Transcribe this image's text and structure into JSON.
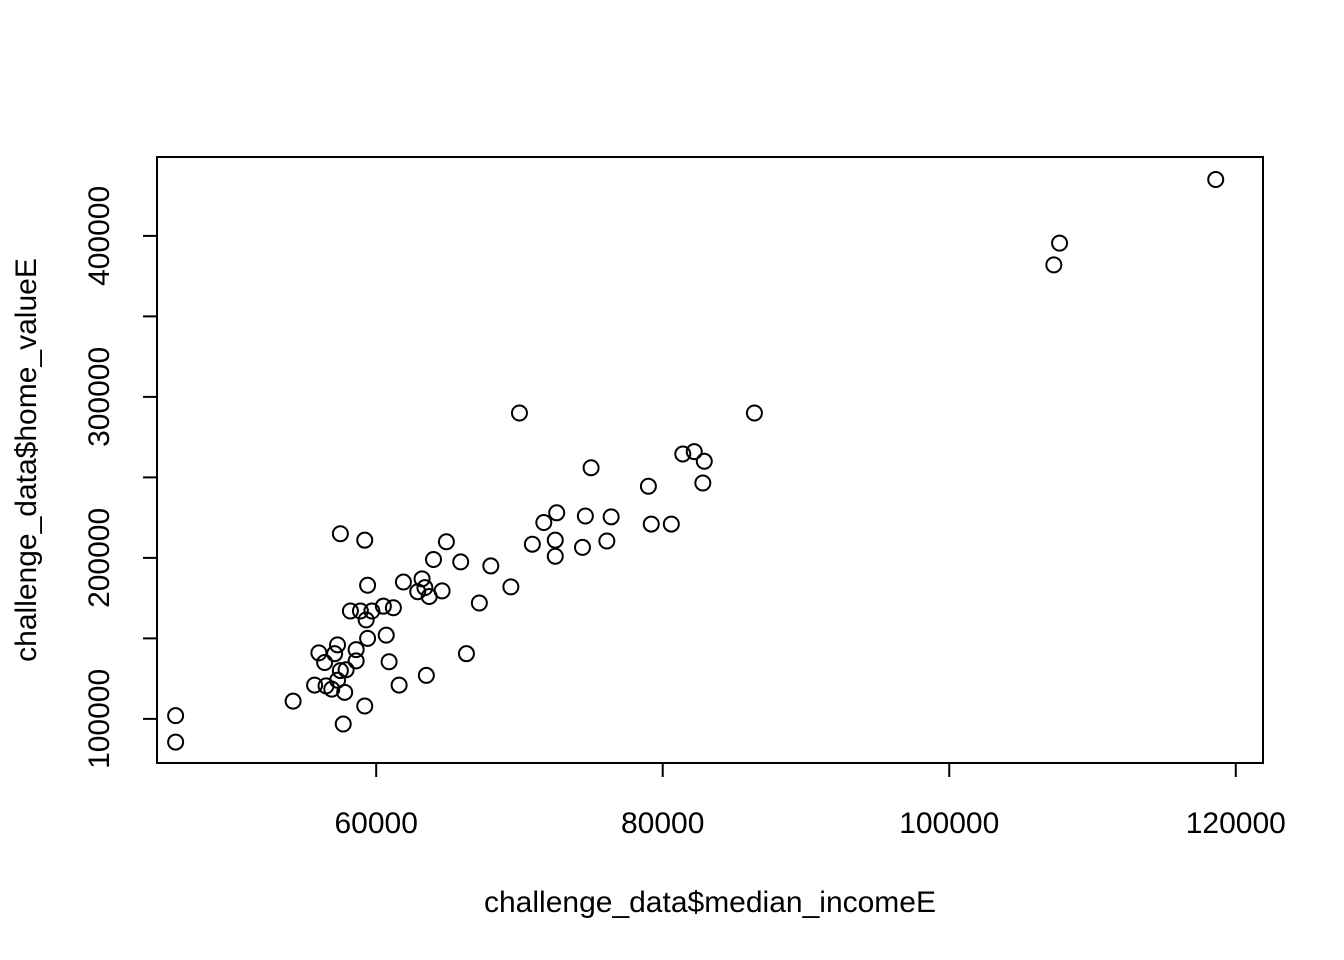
{
  "chart_data": {
    "type": "scatter",
    "title": "",
    "xlabel": "challenge_data$median_incomeE",
    "ylabel": "challenge_data$home_valueE",
    "xlim": [
      44700,
      121900
    ],
    "ylim": [
      72600,
      449000
    ],
    "xticks": [
      {
        "value": 60000,
        "label": "60000"
      },
      {
        "value": 80000,
        "label": "80000"
      },
      {
        "value": 100000,
        "label": "100000"
      },
      {
        "value": 120000,
        "label": "120000"
      }
    ],
    "yticks": [
      {
        "value": 100000,
        "label": "100000"
      },
      {
        "value": 150000,
        "label": ""
      },
      {
        "value": 200000,
        "label": "200000"
      },
      {
        "value": 250000,
        "label": ""
      },
      {
        "value": 300000,
        "label": "300000"
      },
      {
        "value": 350000,
        "label": ""
      },
      {
        "value": 400000,
        "label": "400000"
      }
    ],
    "grid": false,
    "points": [
      [
        46000,
        102000
      ],
      [
        46000,
        85600
      ],
      [
        54200,
        111000
      ],
      [
        55700,
        121000
      ],
      [
        56000,
        141000
      ],
      [
        56400,
        135000
      ],
      [
        56500,
        120500
      ],
      [
        56900,
        118500
      ],
      [
        57100,
        140500
      ],
      [
        57300,
        124000
      ],
      [
        57300,
        146000
      ],
      [
        57500,
        130000
      ],
      [
        57500,
        215000
      ],
      [
        57700,
        96800
      ],
      [
        57800,
        116500
      ],
      [
        57900,
        130500
      ],
      [
        58200,
        167000
      ],
      [
        58600,
        136000
      ],
      [
        58600,
        143000
      ],
      [
        58900,
        167000
      ],
      [
        59200,
        108000
      ],
      [
        59200,
        211000
      ],
      [
        59300,
        161500
      ],
      [
        59400,
        150000
      ],
      [
        59400,
        183000
      ],
      [
        59700,
        167000
      ],
      [
        60500,
        170000
      ],
      [
        60700,
        152000
      ],
      [
        60900,
        135500
      ],
      [
        61200,
        169000
      ],
      [
        61600,
        121000
      ],
      [
        61900,
        185000
      ],
      [
        62900,
        179000
      ],
      [
        63200,
        187000
      ],
      [
        63400,
        181500
      ],
      [
        63500,
        127000
      ],
      [
        63700,
        176000
      ],
      [
        64000,
        199000
      ],
      [
        64600,
        179500
      ],
      [
        64900,
        210000
      ],
      [
        65900,
        197500
      ],
      [
        66300,
        140500
      ],
      [
        67200,
        172000
      ],
      [
        68000,
        195000
      ],
      [
        69400,
        182000
      ],
      [
        70000,
        290000
      ],
      [
        70900,
        208500
      ],
      [
        71700,
        222000
      ],
      [
        72500,
        211000
      ],
      [
        72500,
        201000
      ],
      [
        72600,
        228000
      ],
      [
        74400,
        206500
      ],
      [
        74600,
        226000
      ],
      [
        75000,
        256000
      ],
      [
        76100,
        210500
      ],
      [
        76400,
        225500
      ],
      [
        79000,
        244500
      ],
      [
        79200,
        221000
      ],
      [
        80600,
        221000
      ],
      [
        81400,
        264500
      ],
      [
        82200,
        266000
      ],
      [
        82800,
        246500
      ],
      [
        82900,
        260000
      ],
      [
        86400,
        290000
      ],
      [
        107300,
        382000
      ],
      [
        107700,
        395500
      ],
      [
        118600,
        435000
      ]
    ]
  }
}
